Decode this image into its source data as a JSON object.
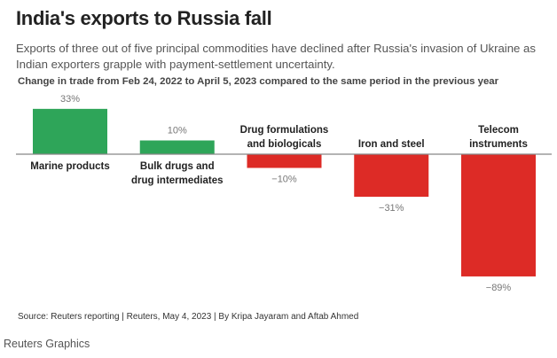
{
  "title": "India's exports to Russia fall",
  "subtitle": "Exports of three out of five principal commodities have declined after Russia's invasion of Ukraine as Indian exporters grapple with payment-settlement uncertainty.",
  "note": "Change in trade from Feb 24, 2022 to April 5, 2023 compared to the same period in the previous year",
  "source": "Source: Reuters reporting | Reuters, May 4, 2023 | By Kripa Jayaram and Aftab Ahmed",
  "credit": "Reuters Graphics",
  "chart_data": {
    "type": "bar",
    "title": "India's exports to Russia fall",
    "categories": [
      "Marine products",
      "Bulk drugs and drug intermediates",
      "Drug formulations and biologicals",
      "Iron and steel",
      "Telecom instruments"
    ],
    "category_lines": [
      [
        "Marine products"
      ],
      [
        "Bulk drugs and",
        "drug intermediates"
      ],
      [
        "Drug formulations",
        "and biologicals"
      ],
      [
        "Iron and steel"
      ],
      [
        "Telecom",
        "instruments"
      ]
    ],
    "values": [
      33,
      10,
      -10,
      -31,
      -89
    ],
    "data_labels": [
      "33%",
      "10%",
      "−10%",
      "−31%",
      "−89%"
    ],
    "unit": "%",
    "colors": {
      "positive": "#2ea559",
      "negative": "#dd2b26",
      "baseline": "#888888"
    },
    "grid": false,
    "legend": "none"
  }
}
